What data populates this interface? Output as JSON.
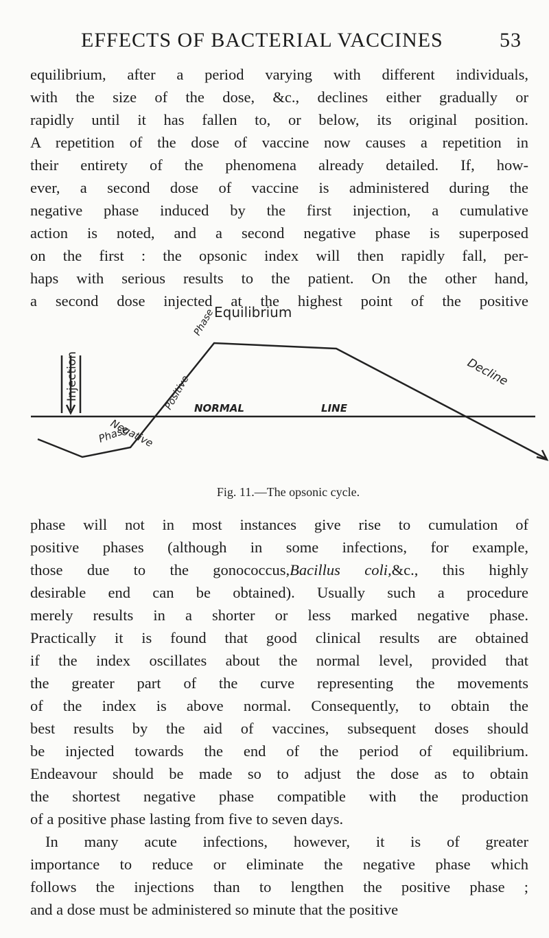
{
  "header": {
    "title": "EFFECTS OF BACTERIAL VACCINES",
    "page": "53"
  },
  "text_before": [
    "equilibrium, after a period varying with different individuals,",
    "with the size of the dose, &c., declines either gradually or",
    "rapidly until it has fallen to, or below, its original position.",
    "A repetition of the dose of vaccine now causes a repetition in",
    "their entirety of the phenomena already detailed. If, how-",
    "ever, a second dose of vaccine is administered during the",
    "negative phase induced by the first injection, a cumulative",
    "action is noted, and a second negative phase is superposed",
    "on the first : the opsonic index will then rapidly fall, per-",
    "haps with serious results to the patient. On the other hand,",
    "a second dose injected at the highest point of the positive"
  ],
  "figure": {
    "labels": {
      "injection": "Injection",
      "positive": "Positive",
      "positive_phase": "Phase",
      "equilibrium": "Equilibrium",
      "decline": "Decline",
      "normal": "NORMAL",
      "line": "LINE",
      "negative": "Negative",
      "negative_phase": "Phase"
    },
    "caption": "Fig. 11.—The opsonic cycle."
  },
  "text_after": [
    "phase will not in most instances give rise to cumulation of",
    "positive phases (although in some infections, for example,",
    [
      "those due to the gonococcus,",
      "Bacillus coli,",
      "&c., this highly"
    ],
    "desirable end can be obtained). Usually such a procedure",
    "merely results in a shorter or less marked negative phase.",
    "Practically it is found that good clinical results are obtained",
    "if the index oscillates about the normal level, provided that",
    "the greater part of the curve representing the movements",
    "of the index is above normal. Consequently, to obtain the",
    "best results by the aid of vaccines, subsequent doses should",
    "be injected towards the end of the period of equilibrium.",
    "Endeavour should be made so to adjust the dose as to obtain",
    "the shortest negative phase compatible with the production",
    "of a positive phase lasting from five to seven days."
  ],
  "paragraph2": [
    "In many acute infections, however, it is of greater",
    "importance to reduce or eliminate the negative phase which",
    "follows the injections than to lengthen the positive phase ;",
    "and a dose must be administered so minute that the positive"
  ]
}
